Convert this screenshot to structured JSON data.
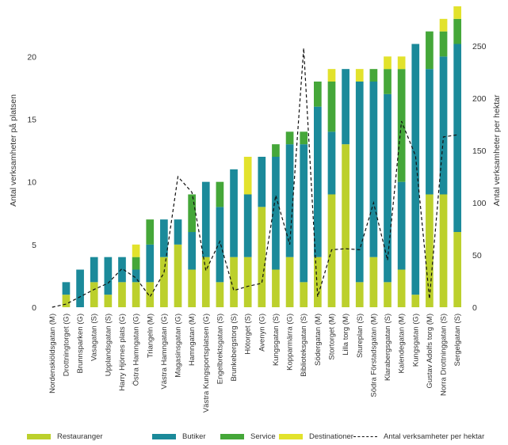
{
  "chart_data": {
    "type": "bar",
    "stacked": true,
    "categories": [
      "Nordenskiöldsgatan (M)",
      "Drottningtorget (G)",
      "Brunnsparken (G)",
      "Vasagatan (S)",
      "Upplandsgatan (S)",
      "Harry Hjörnes plats (G)",
      "Östra Hamngatan (G)",
      "Triangeln (M)",
      "Västra Hamngatan (G)",
      "Magasinsgatan (G)",
      "Hamngatan (M)",
      "Västra Kungsportsplatsen (G)",
      "Engelbrektsgatan (S)",
      "Brunkebergstorg (S)",
      "Hötorget (S)",
      "Avenyn (G)",
      "Kungsgatan (S)",
      "Kopparmärra (G)",
      "Biblioteksgatan (S)",
      "Södergatan (M)",
      "Stortorget (M)",
      "Lilla torg (M)",
      "Stureplan (S)",
      "Södra Förstadsgatan (M)",
      "Klarabergsgatan (S)",
      "Kalendegatan (M)",
      "Kungsgatan (G)",
      "Gustav Adolfs torg (M)",
      "Norra Drottninggatan (S)",
      "Sergelgatan (S)"
    ],
    "series": [
      {
        "name": "Restauranger",
        "color": "#bcd02c",
        "values": [
          0,
          1,
          0,
          2,
          1,
          2,
          2,
          2,
          4,
          5,
          3,
          4,
          2,
          4,
          4,
          8,
          3,
          4,
          2,
          4,
          9,
          13,
          2,
          4,
          2,
          3,
          1,
          9,
          9,
          6
        ]
      },
      {
        "name": "Butiker",
        "color": "#1b8a9a",
        "values": [
          0,
          1,
          3,
          2,
          3,
          2,
          1,
          3,
          3,
          2,
          3,
          6,
          6,
          7,
          5,
          4,
          9,
          9,
          11,
          12,
          5,
          6,
          16,
          14,
          15,
          7,
          20,
          10,
          11,
          15
        ]
      },
      {
        "name": "Service",
        "color": "#45a739",
        "values": [
          0,
          0,
          0,
          0,
          0,
          0,
          1,
          2,
          0,
          0,
          3,
          0,
          2,
          0,
          0,
          0,
          1,
          1,
          1,
          2,
          4,
          0,
          0,
          1,
          2,
          9,
          0,
          3,
          2,
          2
        ]
      },
      {
        "name": "Destinationer",
        "color": "#e2e22c",
        "values": [
          0,
          0,
          0,
          0,
          0,
          0,
          1,
          0,
          0,
          0,
          0,
          0,
          0,
          0,
          3,
          0,
          0,
          0,
          0,
          0,
          1,
          0,
          1,
          0,
          1,
          1,
          0,
          0,
          1,
          1
        ]
      }
    ],
    "line_series": {
      "name": "Antal verksamheter per hektar",
      "axis": "right",
      "values": [
        0,
        3,
        10,
        17,
        23,
        37,
        28,
        10,
        33,
        125,
        110,
        35,
        63,
        16,
        20,
        23,
        107,
        60,
        248,
        10,
        55,
        56,
        55,
        100,
        45,
        178,
        145,
        8,
        163,
        165
      ]
    },
    "ylabel": "Antal verksamheter på platsen",
    "y2label": "Antal verksamheter per hektar",
    "ylim": [
      0,
      24
    ],
    "yticks": [
      0,
      5,
      10,
      15,
      20
    ],
    "y2lim": [
      0,
      288
    ],
    "y2ticks": [
      0,
      50,
      100,
      150,
      200,
      250
    ],
    "legend_position": "bottom"
  }
}
